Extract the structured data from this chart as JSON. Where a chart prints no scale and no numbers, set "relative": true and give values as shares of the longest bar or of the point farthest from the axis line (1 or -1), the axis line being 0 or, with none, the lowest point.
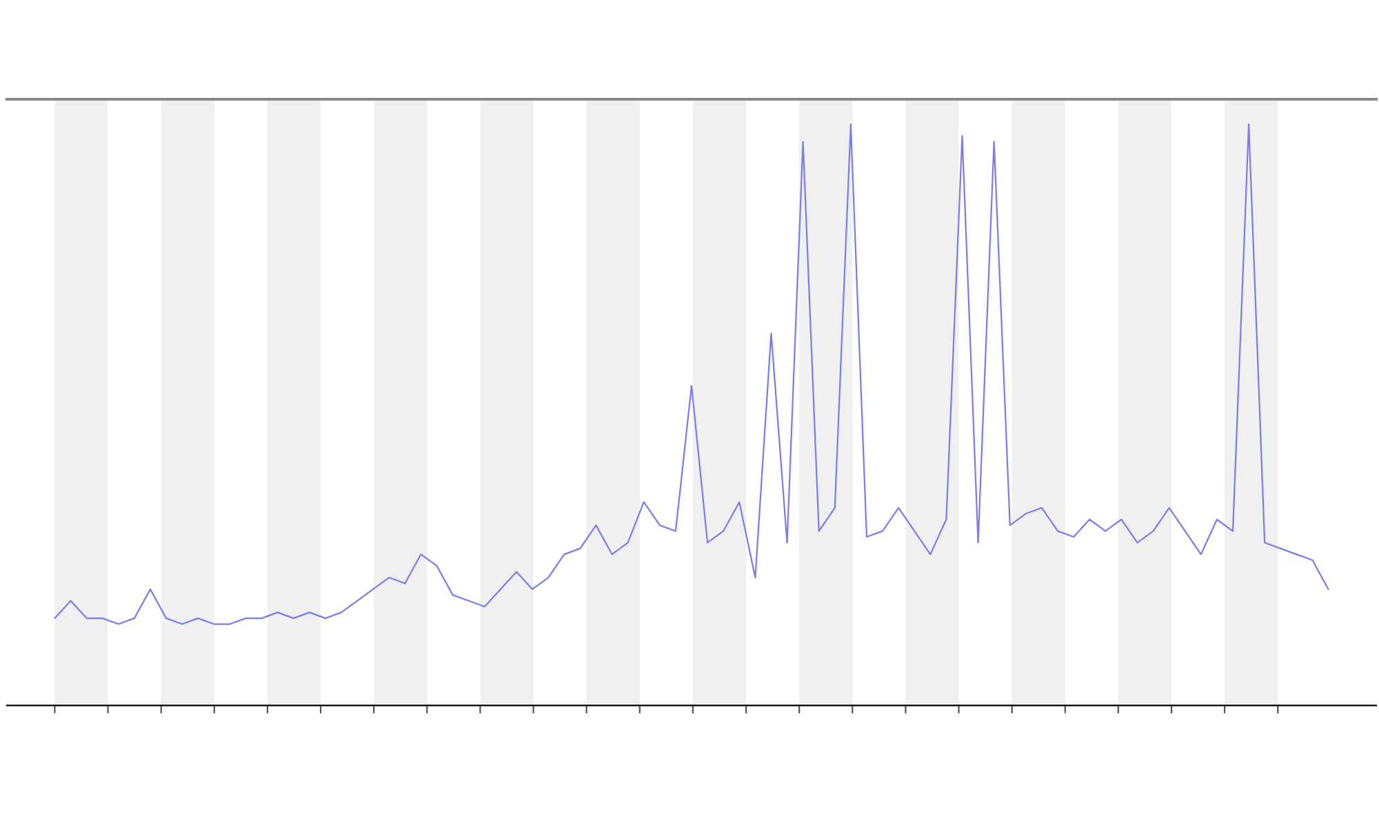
{
  "chart_data": {
    "type": "line",
    "relative": true,
    "grid": false,
    "legend": false,
    "categories": [
      null,
      null,
      null,
      null,
      null,
      null,
      null,
      null,
      null,
      null,
      null,
      null,
      null,
      null,
      null,
      null,
      null,
      null,
      null,
      null,
      null,
      null,
      null,
      null,
      null,
      null,
      null,
      null,
      null,
      null,
      null,
      null,
      null,
      null,
      null,
      null,
      null,
      null,
      null,
      null,
      null,
      null,
      null,
      null,
      null,
      null,
      null,
      null,
      null,
      null,
      null,
      null,
      null,
      null,
      null,
      null,
      null,
      null,
      null,
      null,
      null,
      null,
      null,
      null,
      null,
      null,
      null,
      null,
      null,
      null,
      null,
      null,
      null,
      null,
      null,
      null,
      null,
      null,
      null,
      null,
      null
    ],
    "series": [
      {
        "color": "#7b7bf0",
        "values": [
          0.15,
          0.18,
          0.15,
          0.15,
          0.14,
          0.15,
          0.2,
          0.15,
          0.14,
          0.15,
          0.14,
          0.14,
          0.15,
          0.15,
          0.16,
          0.15,
          0.16,
          0.15,
          0.16,
          0.18,
          0.2,
          0.22,
          0.21,
          0.26,
          0.24,
          0.19,
          0.18,
          0.17,
          0.2,
          0.23,
          0.2,
          0.22,
          0.26,
          0.27,
          0.31,
          0.26,
          0.28,
          0.35,
          0.31,
          0.3,
          0.55,
          0.28,
          0.3,
          0.35,
          0.22,
          0.64,
          0.28,
          0.97,
          0.3,
          0.34,
          1.0,
          0.29,
          0.3,
          0.34,
          0.3,
          0.26,
          0.32,
          0.98,
          0.28,
          0.97,
          0.31,
          0.33,
          0.34,
          0.3,
          0.29,
          0.32,
          0.3,
          0.32,
          0.28,
          0.3,
          0.34,
          0.3,
          0.26,
          0.32,
          0.3,
          1.0,
          0.28,
          0.27,
          0.26,
          0.25,
          0.2
        ]
      }
    ]
  }
}
